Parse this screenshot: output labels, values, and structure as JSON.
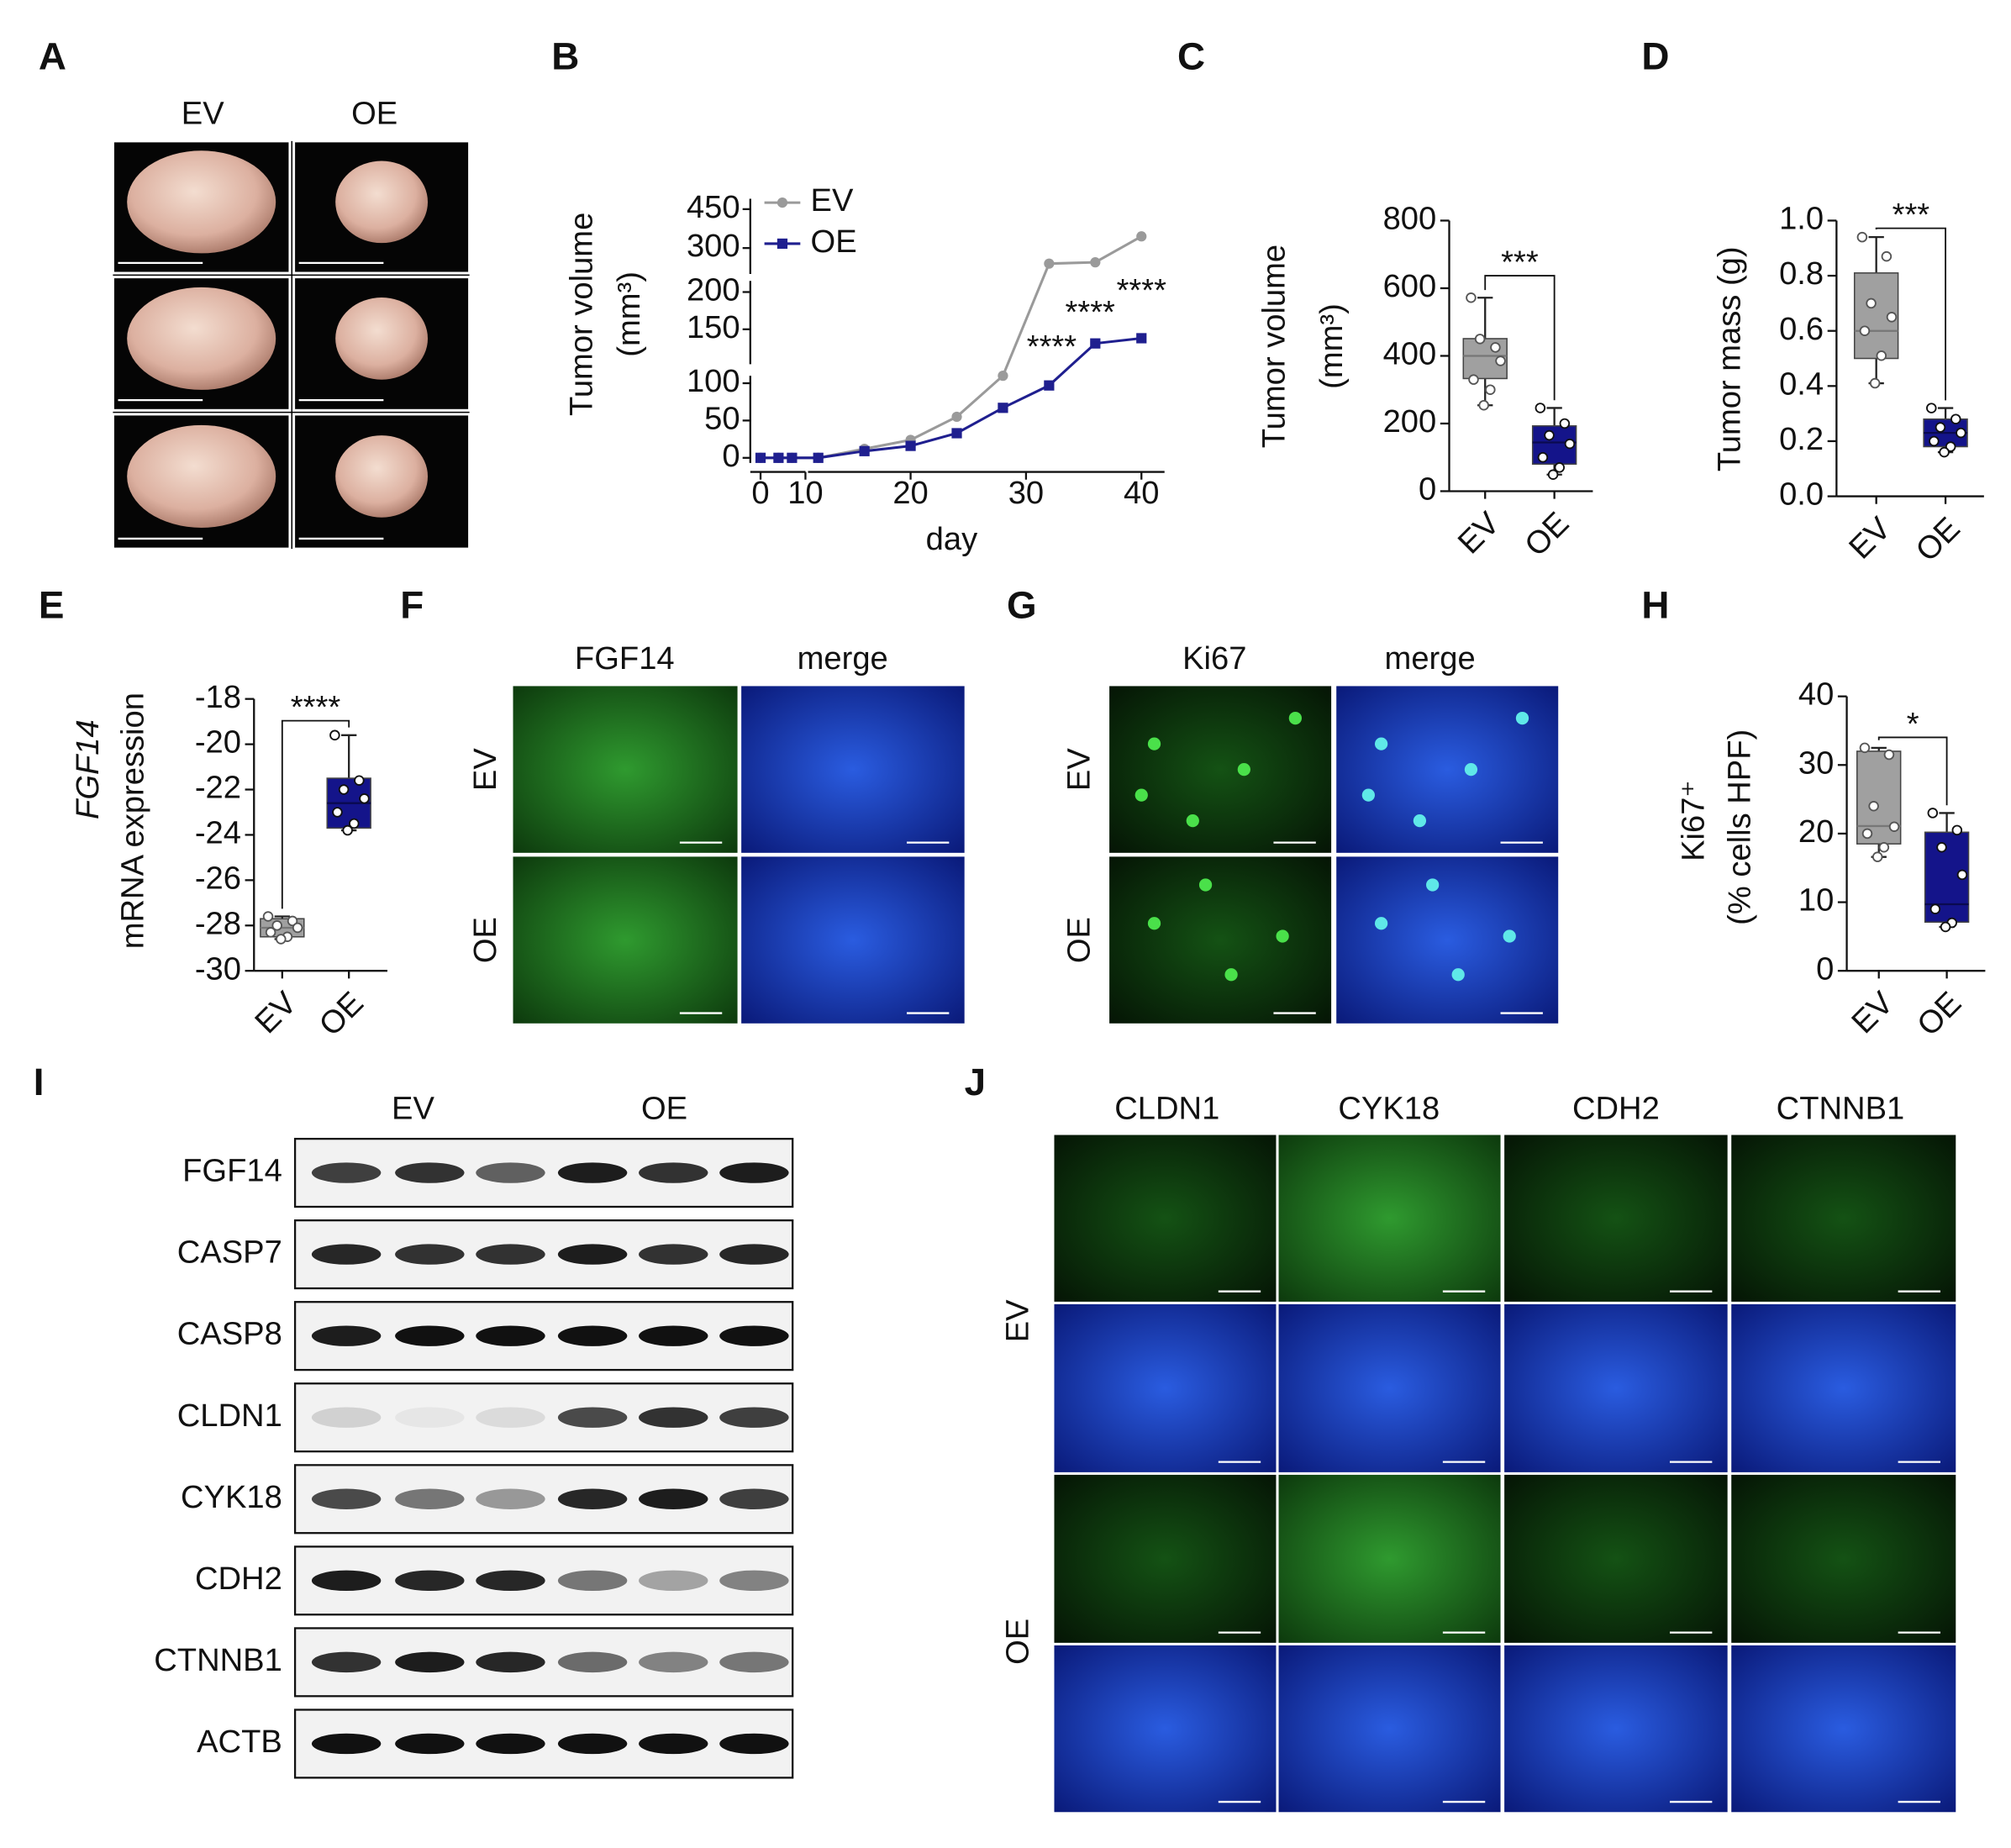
{
  "panel_labels": [
    "A",
    "B",
    "C",
    "D",
    "E",
    "F",
    "G",
    "H",
    "I",
    "J"
  ],
  "panel_a": {
    "columns": [
      "EV",
      "OE"
    ]
  },
  "chart_data": [
    {
      "type": "line",
      "y_label": [
        "Tumor volume",
        "(mm³)"
      ],
      "x_label": "day",
      "x": [
        0,
        4,
        7,
        12,
        16,
        20,
        24,
        28,
        32,
        36,
        40
      ],
      "x_segments": [
        {
          "xlim": [
            0,
            10
          ],
          "xticks": [
            0,
            10
          ]
        },
        {
          "xlim": [
            12,
            42
          ],
          "xticks": [
            20,
            30,
            40
          ]
        }
      ],
      "y_segments": [
        {
          "ylim": [
            0,
            110
          ],
          "yticks": [
            0,
            50,
            100
          ]
        },
        {
          "ylim": [
            110,
            215
          ],
          "yticks": [
            150,
            200
          ]
        },
        {
          "ylim": [
            220,
            490
          ],
          "yticks": [
            300,
            450
          ]
        }
      ],
      "series": [
        {
          "name": "EV",
          "color": "#9a9a9a",
          "values": [
            0,
            0,
            0,
            0,
            12,
            24,
            55,
            110,
            240,
            245,
            345
          ]
        },
        {
          "name": "OE",
          "color": "#1f1f8f",
          "values": [
            0,
            0,
            0,
            0,
            9,
            16,
            33,
            67,
            97,
            131,
            138
          ]
        }
      ],
      "annotations": [
        "****",
        "****",
        "****"
      ],
      "legend": "upper left"
    },
    {
      "type": "box",
      "y_label": [
        "Tumor volume",
        "(mm³)"
      ],
      "categories": [
        "EV",
        "OE"
      ],
      "ylim": [
        0,
        800
      ],
      "yticks": [
        0,
        200,
        400,
        600,
        800
      ],
      "significance": "***",
      "boxes": [
        {
          "color": "#a0a0a0",
          "min": 254,
          "q1": 333,
          "median": 400,
          "q3": 451,
          "max": 572,
          "points": [
            572,
            425,
            450,
            385,
            330,
            300,
            254
          ]
        },
        {
          "color": "#14148a",
          "min": 49,
          "q1": 80,
          "median": 144,
          "q3": 193,
          "max": 246,
          "points": [
            246,
            200,
            165,
            140,
            100,
            70,
            49
          ]
        }
      ]
    },
    {
      "type": "box",
      "y_label": [
        "Tumor mass (g)"
      ],
      "categories": [
        "EV",
        "OE"
      ],
      "ylim": [
        0,
        1.0
      ],
      "yticks": [
        {
          "value": 0,
          "label": "0.0"
        },
        {
          "value": 0.2,
          "label": "0.2"
        },
        {
          "value": 0.4,
          "label": "0.4"
        },
        {
          "value": 0.6,
          "label": "0.6"
        },
        {
          "value": 0.8,
          "label": "0.8"
        },
        {
          "value": 1.0,
          "label": "1.0"
        }
      ],
      "significance": "***",
      "boxes": [
        {
          "color": "#a0a0a0",
          "min": 0.41,
          "q1": 0.5,
          "median": 0.6,
          "q3": 0.81,
          "max": 0.94,
          "points": [
            0.94,
            0.87,
            0.7,
            0.65,
            0.6,
            0.51,
            0.41
          ]
        },
        {
          "color": "#14148a",
          "min": 0.16,
          "q1": 0.18,
          "median": 0.23,
          "q3": 0.28,
          "max": 0.32,
          "points": [
            0.32,
            0.28,
            0.25,
            0.23,
            0.2,
            0.18,
            0.16
          ]
        }
      ]
    },
    {
      "type": "box",
      "y_label": [
        "FGF14",
        "mRNA expression"
      ],
      "categories": [
        "EV",
        "OE"
      ],
      "ylim": [
        -30,
        -18
      ],
      "yticks": [
        -18,
        -20,
        -22,
        -24,
        -26,
        -28,
        -30
      ],
      "significance": "****",
      "boxes": [
        {
          "color": "#a0a0a0",
          "min": -28.6,
          "q1": -28.5,
          "median": -28.1,
          "q3": -27.7,
          "max": -27.6,
          "points": [
            -27.6,
            -27.8,
            -28.0,
            -28.1,
            -28.3,
            -28.5,
            -28.6
          ]
        },
        {
          "color": "#14148a",
          "min": -23.8,
          "q1": -23.7,
          "median": -22.6,
          "q3": -21.5,
          "max": -19.6,
          "points": [
            -19.6,
            -21.6,
            -22.0,
            -22.4,
            -23.0,
            -23.5,
            -23.8
          ]
        }
      ]
    },
    {
      "type": "box",
      "y_label": [
        "Ki67⁺",
        "(% cells HPF)"
      ],
      "categories": [
        "EV",
        "OE"
      ],
      "ylim": [
        0,
        40
      ],
      "yticks": [
        0,
        10,
        20,
        30,
        40
      ],
      "significance": "*",
      "boxes": [
        {
          "color": "#a0a0a0",
          "min": 16.6,
          "q1": 18.5,
          "median": 21.1,
          "q3": 32,
          "max": 32.5,
          "points": [
            32.5,
            31.5,
            24,
            21,
            20,
            18,
            16.6
          ]
        },
        {
          "color": "#14148a",
          "min": 6.4,
          "q1": 7.1,
          "median": 9.7,
          "q3": 20.2,
          "max": 23,
          "points": [
            23,
            20.5,
            18,
            14,
            9,
            7,
            6.4
          ]
        }
      ]
    }
  ],
  "panel_f": {
    "columns": [
      "FGF14",
      "merge"
    ],
    "rows": [
      "EV",
      "OE"
    ]
  },
  "panel_g": {
    "columns": [
      "Ki67",
      "merge"
    ],
    "rows": [
      "EV",
      "OE"
    ]
  },
  "panel_i": {
    "groups": [
      "EV",
      "OE"
    ],
    "proteins": [
      "FGF14",
      "CASP7",
      "CASP8",
      "CLDN1",
      "CYK18",
      "CDH2",
      "CTNNB1",
      "ACTB"
    ]
  },
  "panel_j": {
    "columns": [
      "CLDN1",
      "CYK18",
      "CDH2",
      "CTNNB1"
    ],
    "rows": [
      "EV",
      "OE"
    ]
  }
}
